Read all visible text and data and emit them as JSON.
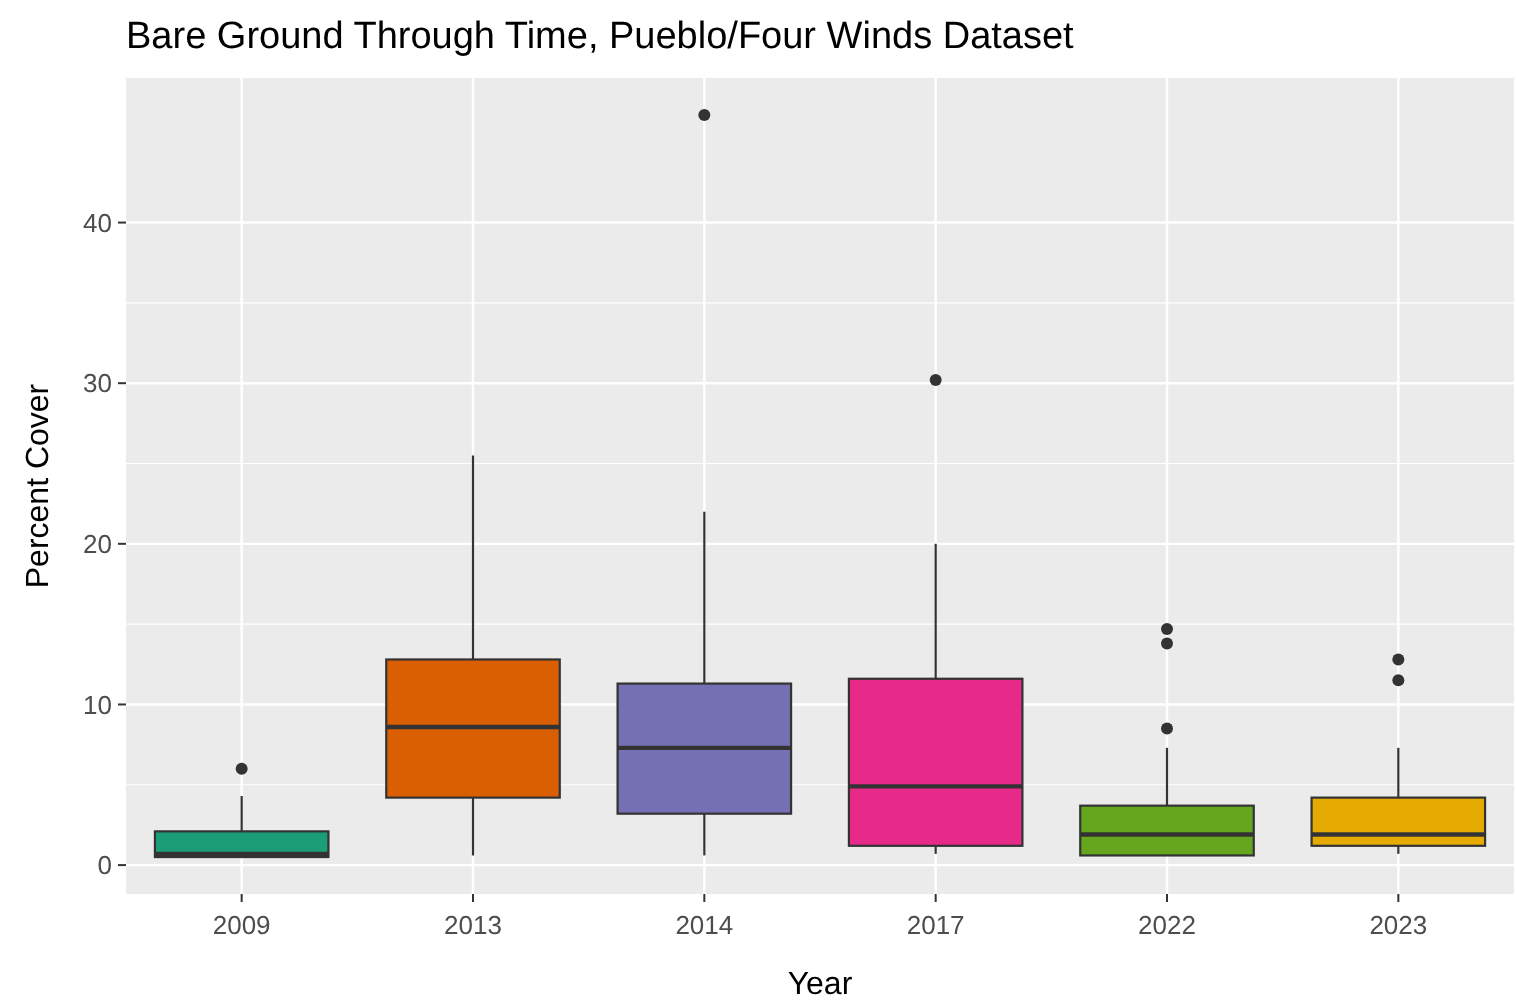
{
  "chart_data": {
    "type": "box",
    "title": "Bare Ground Through Time, Pueblo/Four Winds Dataset",
    "xlabel": "Year",
    "ylabel": "Percent Cover",
    "categories": [
      "2009",
      "2013",
      "2014",
      "2017",
      "2022",
      "2023"
    ],
    "colors": [
      "#1b9e77",
      "#d95f02",
      "#7570b3",
      "#e7298a",
      "#66a61e",
      "#e6ab02"
    ],
    "boxes": [
      {
        "low": 0.5,
        "q1": 0.5,
        "median": 0.7,
        "q3": 2.1,
        "high": 4.3,
        "outliers": [
          6.0
        ]
      },
      {
        "low": 0.6,
        "q1": 4.2,
        "median": 8.6,
        "q3": 12.8,
        "high": 25.5
      },
      {
        "low": 0.6,
        "q1": 3.2,
        "median": 7.3,
        "q3": 11.3,
        "high": 22.0,
        "outliers": [
          46.7
        ]
      },
      {
        "low": 0.7,
        "q1": 1.2,
        "median": 4.9,
        "q3": 11.6,
        "high": 20.0,
        "outliers": [
          30.2
        ]
      },
      {
        "low": 0.6,
        "q1": 0.6,
        "median": 1.9,
        "q3": 3.7,
        "high": 7.3,
        "outliers": [
          14.7,
          13.8,
          8.5
        ]
      },
      {
        "low": 0.7,
        "q1": 1.2,
        "median": 1.9,
        "q3": 4.2,
        "high": 7.3,
        "outliers": [
          12.8,
          11.5
        ]
      }
    ],
    "ylim": [
      -1.8,
      49.0
    ],
    "yticks": [
      0,
      10,
      20,
      30,
      40
    ],
    "grid": true
  }
}
